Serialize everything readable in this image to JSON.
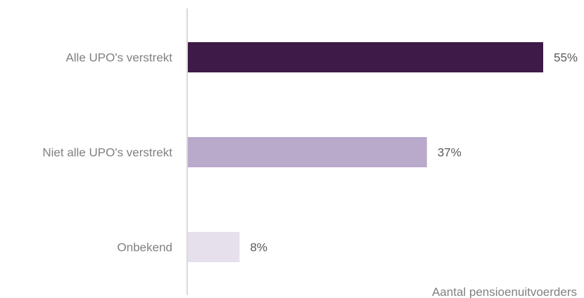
{
  "chart_data": {
    "type": "bar",
    "orientation": "horizontal",
    "categories": [
      "Alle UPO's verstrekt",
      "Niet alle UPO's verstrekt",
      "Onbekend"
    ],
    "values": [
      55,
      37,
      8
    ],
    "value_labels": [
      "55%",
      "37%",
      "8%"
    ],
    "colors": [
      "#3d1a47",
      "#b9a9ca",
      "#e6e0ec"
    ],
    "xlabel": "Aantal pensioenuitvoerders",
    "xlim": [
      0,
      55
    ],
    "grid": false,
    "legend": "none"
  }
}
